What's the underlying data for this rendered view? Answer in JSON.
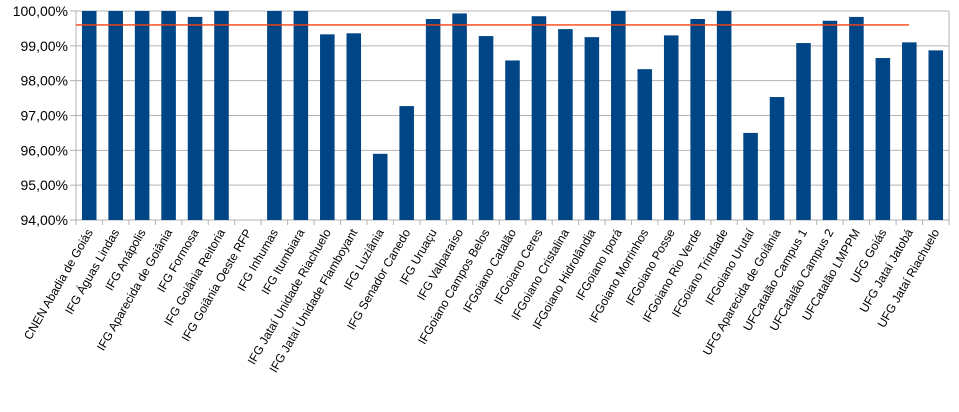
{
  "chart_data": {
    "type": "bar",
    "categories": [
      "CNEN Abadia de Goiás",
      "IFG Águas Lindas",
      "IFG Anápolis",
      "IFG Aparecida de Goiânia",
      "IFG Formosa",
      "IFG Goiânia Reitoria",
      "IFG Goiânia Oeste RFP",
      "IFG Inhumas",
      "IFG Itumbiara",
      "IFG Jataí Unidade Riachuelo",
      "IFG Jataí Unidade Flamboyant",
      "IFG Luziânia",
      "IFG Senador Canedo",
      "IFG Uruaçu",
      "IFG Valparaíso",
      "IFGoiano Campos Belos",
      "IFGoiano Catalão",
      "IFGoiano Ceres",
      "IFGoiano Cristalina",
      "IFGoiano Hidrolândia",
      "IFGoiano Iporá",
      "IFGoiano Morrinhos",
      "IFGoiano Posse",
      "IFGoiano Rio Verde",
      "IFGoiano Trindade",
      "IFGoiano Urutaí",
      "UFG Aparecida de Goiânia",
      "UFCatalão Campus 1",
      "UFCatalão Campus 2",
      "UFCatalão LMPPM",
      "UFG Goiás",
      "UFG Jataí Jatobá",
      "UFG Jataí Riachuelo"
    ],
    "values": [
      100.0,
      100.0,
      100.0,
      100.0,
      99.83,
      100.0,
      null,
      100.0,
      100.0,
      99.33,
      99.36,
      95.9,
      97.27,
      99.77,
      99.93,
      99.28,
      98.58,
      99.85,
      99.48,
      99.25,
      100.0,
      98.33,
      99.3,
      99.77,
      100.0,
      96.5,
      97.53,
      99.08,
      99.72,
      99.83,
      98.65,
      99.1,
      98.87
    ],
    "reference_line": 99.6,
    "yticks": [
      "94,00%",
      "95,00%",
      "96,00%",
      "97,00%",
      "98,00%",
      "99,00%",
      "100,00%"
    ],
    "ylim": [
      94,
      100
    ],
    "grid": true,
    "colors": {
      "bar": "#004586",
      "reference_line": "#ff420e",
      "grid": "#b3b3b3",
      "axis": "#b3b3b3"
    },
    "title": "",
    "xlabel": "",
    "ylabel": ""
  }
}
